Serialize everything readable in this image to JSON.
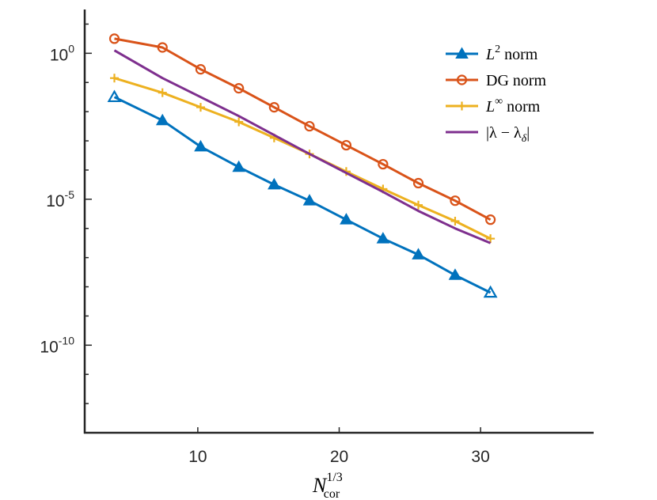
{
  "chart_data": {
    "type": "line",
    "title": "",
    "xlabel": "N_cor^{1/3}",
    "xlabel_base": "N",
    "xlabel_sub": "cor",
    "xlabel_sup": "1/3",
    "ylabel": "",
    "yscale": "log",
    "xlim": [
      2,
      38
    ],
    "ylim_exp": [
      -13,
      1.5
    ],
    "xticks": [
      10,
      20,
      30
    ],
    "xtick_labels": [
      "10",
      "20",
      "30"
    ],
    "yticks_exp": [
      0,
      -5,
      -10
    ],
    "ytick_labels": [
      {
        "base": "10",
        "exp": "0"
      },
      {
        "base": "10",
        "exp": "-5"
      },
      {
        "base": "10",
        "exp": "-10"
      }
    ],
    "grid": false,
    "legend_position": "top-right",
    "series": [
      {
        "name": "L2 norm",
        "legend_main": "L",
        "legend_sup": "2",
        "legend_rest": " norm",
        "color": "#0072BD",
        "marker": "triangle",
        "x": [
          4.1,
          7.5,
          10.2,
          12.9,
          15.4,
          17.9,
          20.5,
          23.1,
          25.6,
          28.2,
          30.7
        ],
        "log10_y": [
          -1.5,
          -2.3,
          -3.2,
          -3.9,
          -4.5,
          -5.05,
          -5.7,
          -6.35,
          -6.9,
          -7.6,
          -8.2
        ]
      },
      {
        "name": "DG norm",
        "legend_main": "DG norm",
        "legend_sup": "",
        "legend_rest": "",
        "color": "#D95319",
        "marker": "circle",
        "x": [
          4.1,
          7.5,
          10.2,
          12.9,
          15.4,
          17.9,
          20.5,
          23.1,
          25.6,
          28.2,
          30.7
        ],
        "log10_y": [
          0.5,
          0.2,
          -0.55,
          -1.2,
          -1.85,
          -2.5,
          -3.15,
          -3.8,
          -4.45,
          -5.05,
          -5.7
        ]
      },
      {
        "name": "L-infinity norm",
        "legend_main": "L",
        "legend_sup": "∞",
        "legend_rest": " norm",
        "color": "#EDB120",
        "marker": "plus",
        "x": [
          4.1,
          7.5,
          10.2,
          12.9,
          15.4,
          17.9,
          20.5,
          23.1,
          25.6,
          28.2,
          30.7
        ],
        "log10_y": [
          -0.85,
          -1.35,
          -1.85,
          -2.35,
          -2.9,
          -3.45,
          -4.05,
          -4.65,
          -5.2,
          -5.75,
          -6.35
        ]
      },
      {
        "name": "|λ - λδ|",
        "legend_main": "|λ − λ",
        "legend_sup": "",
        "legend_sub": "δ",
        "legend_rest": "|",
        "color": "#7E2F8E",
        "marker": "none",
        "x": [
          4.1,
          7.5,
          10.2,
          12.9,
          15.4,
          17.9,
          20.5,
          23.1,
          25.6,
          28.2,
          30.7
        ],
        "log10_y": [
          0.1,
          -0.85,
          -1.5,
          -2.15,
          -2.8,
          -3.45,
          -4.1,
          -4.75,
          -5.4,
          -6.0,
          -6.5
        ]
      }
    ]
  }
}
